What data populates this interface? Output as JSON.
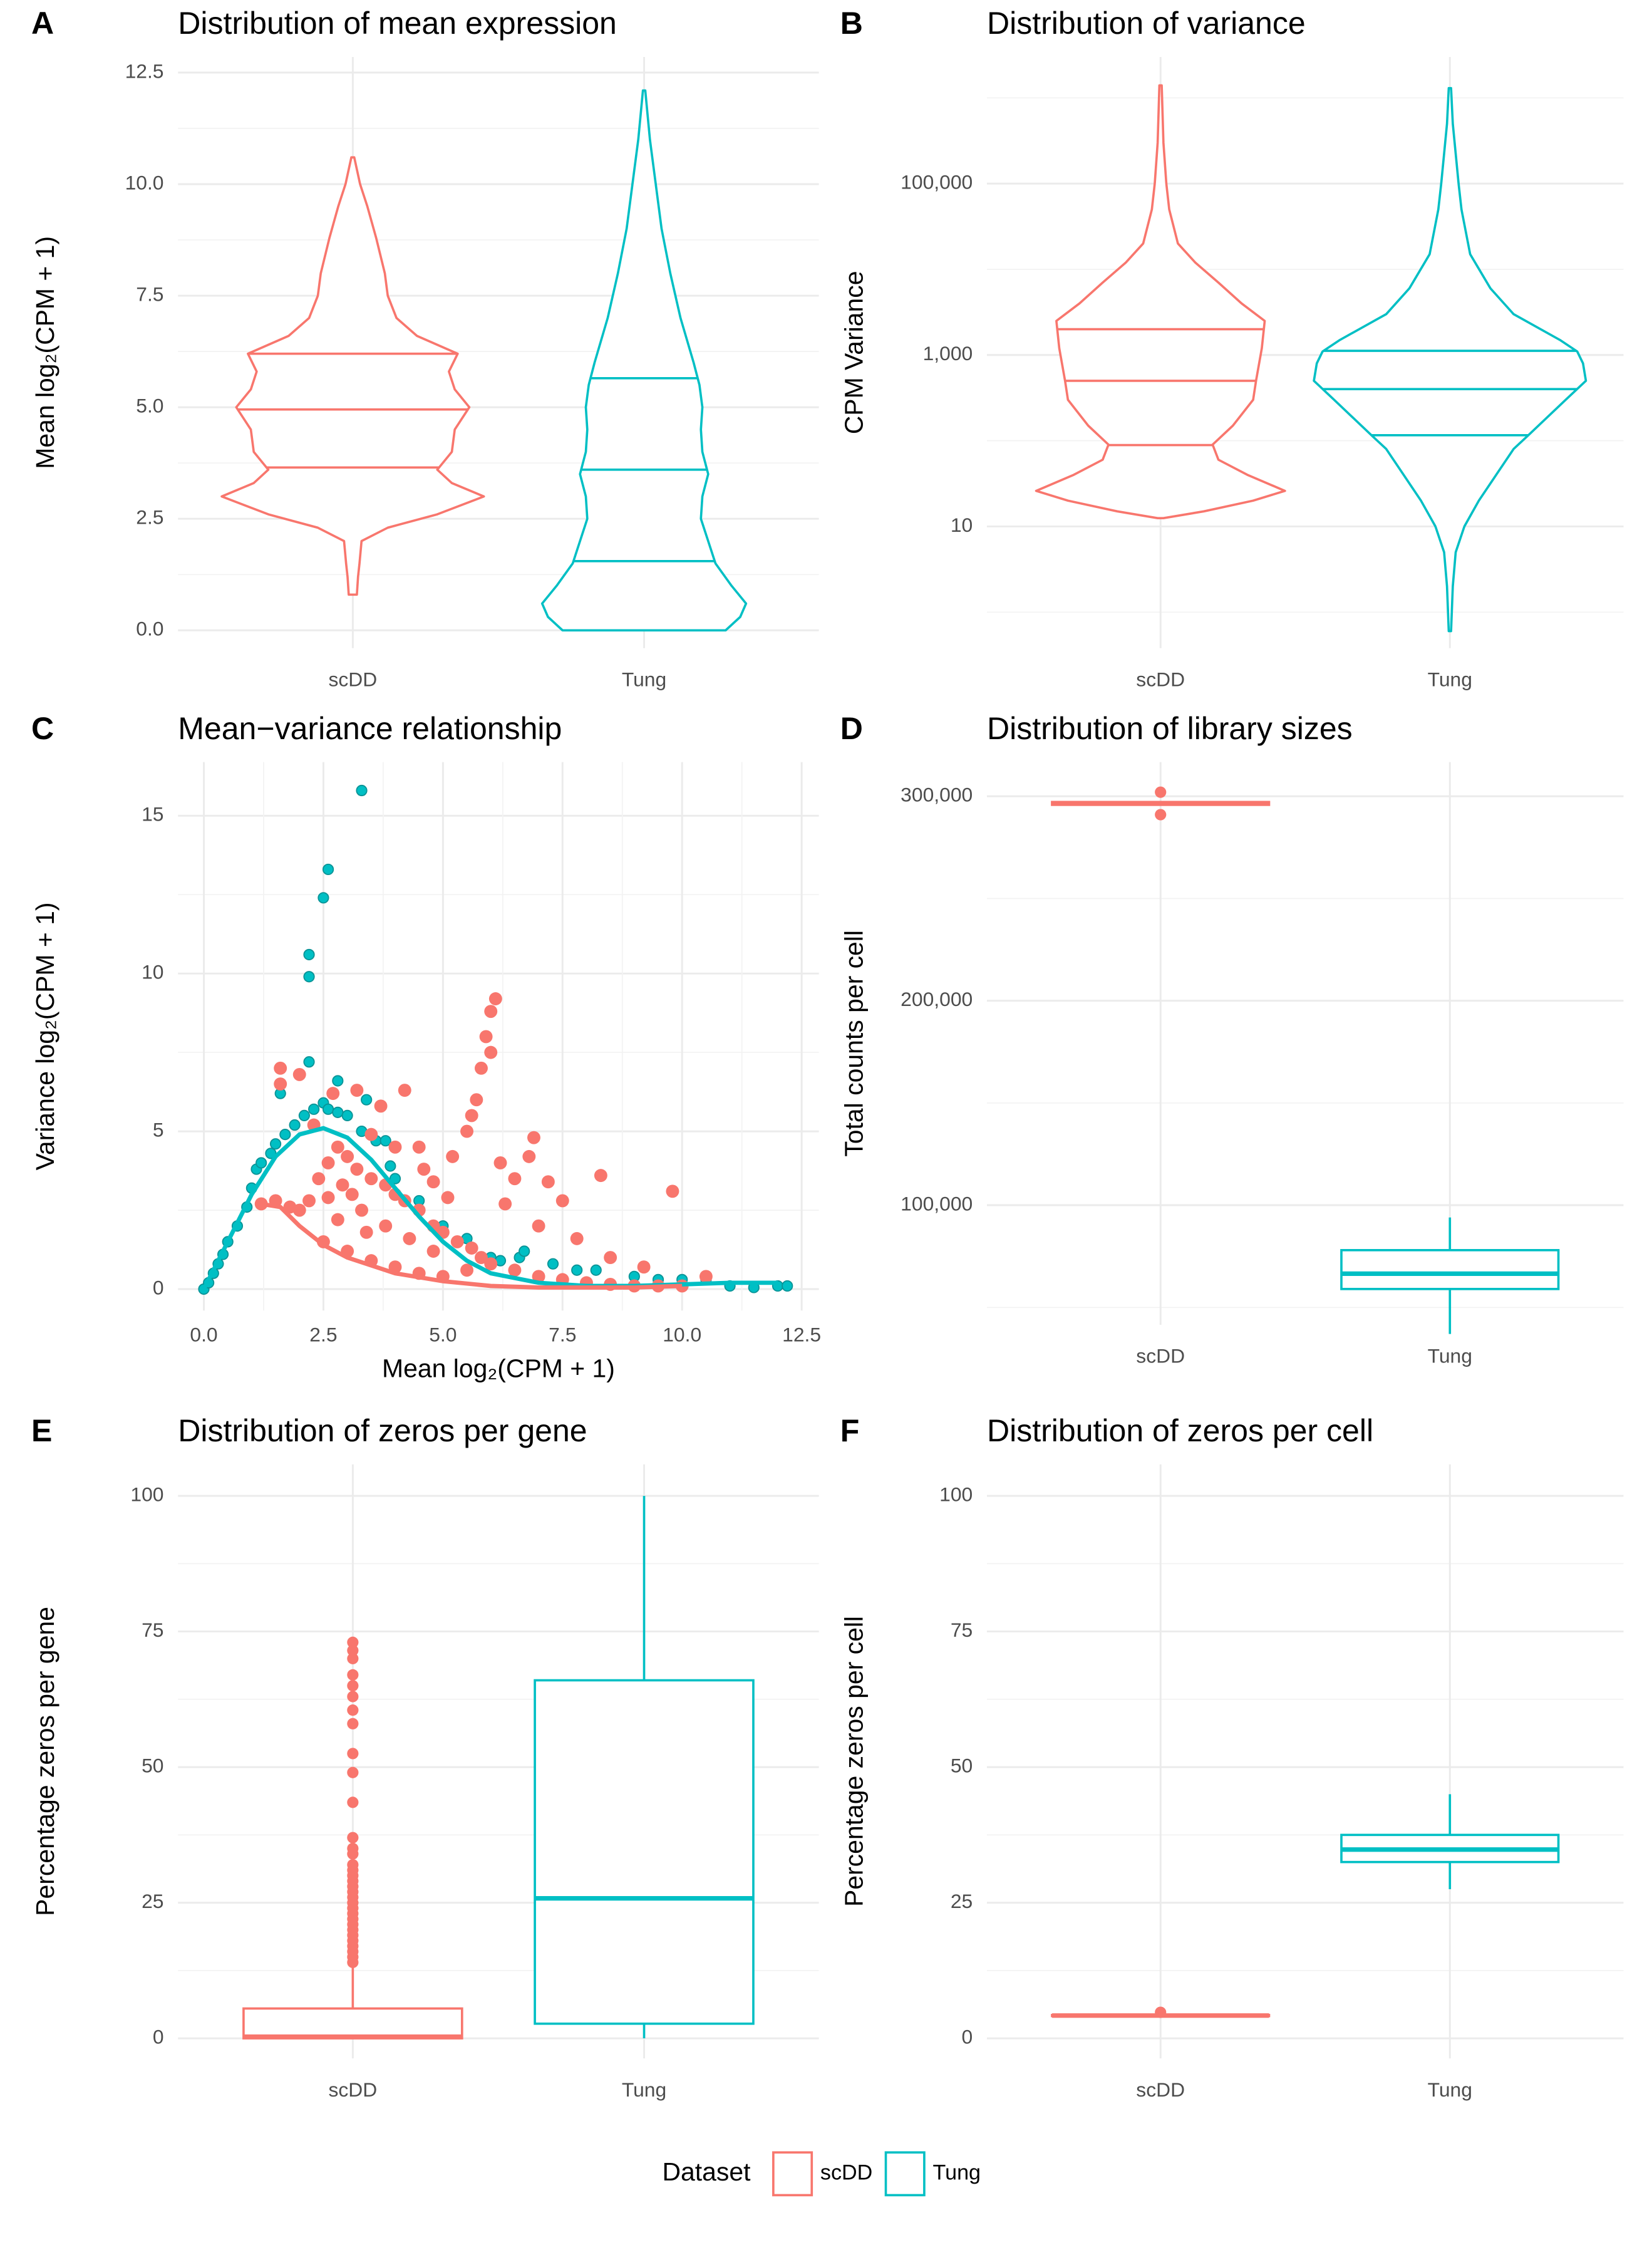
{
  "legend": {
    "title": "Dataset"
  },
  "chart_data": [
    {
      "type": "violin",
      "tag": "A",
      "title": "Distribution of mean expression",
      "ylabel": "Mean log₂(CPM + 1)",
      "categories": [
        "scDD",
        "Tung"
      ],
      "grid": true,
      "ylim": [
        -0.4,
        12.85
      ],
      "yticks": [
        {
          "value": 0,
          "label": "0.0"
        },
        2.5,
        {
          "value": 5,
          "label": "5.0"
        },
        7.5,
        {
          "value": 10,
          "label": "10.0"
        },
        12.5
      ],
      "minor_yticks": [
        1.25,
        3.75,
        6.25,
        8.75,
        11.25
      ],
      "series": [
        {
          "name": "scDD",
          "color": "#F8766D",
          "quantiles": [
            3.65,
            4.95,
            6.2
          ],
          "density": {
            "y": [
              0.8,
              1.2,
              1.5,
              2.0,
              2.3,
              2.6,
              3.0,
              3.3,
              3.6,
              4.0,
              4.5,
              5.0,
              5.4,
              5.8,
              6.2,
              6.6,
              7.0,
              7.5,
              8.0,
              8.8,
              9.5,
              10,
              10.6
            ],
            "width": [
              0.014,
              0.018,
              0.023,
              0.03,
              0.12,
              0.29,
              0.45,
              0.34,
              0.29,
              0.34,
              0.35,
              0.4,
              0.35,
              0.33,
              0.36,
              0.22,
              0.15,
              0.12,
              0.11,
              0.08,
              0.05,
              0.025,
              0.005
            ]
          }
        },
        {
          "name": "Tung",
          "color": "#00BFC4",
          "quantiles": [
            1.55,
            3.6,
            5.65
          ],
          "density": {
            "y": [
              0,
              0.3,
              0.6,
              1.0,
              1.5,
              2.0,
              2.5,
              3,
              3.5,
              4,
              4.5,
              5,
              5.5,
              6,
              7,
              8,
              9,
              10,
              11,
              12.1
            ],
            "width": [
              0.28,
              0.33,
              0.35,
              0.3,
              0.245,
              0.22,
              0.195,
              0.2,
              0.22,
              0.2,
              0.195,
              0.2,
              0.19,
              0.17,
              0.125,
              0.09,
              0.06,
              0.04,
              0.02,
              0.004
            ]
          }
        }
      ]
    },
    {
      "type": "violin",
      "tag": "B",
      "title": "Distribution of variance",
      "ylabel": "CPM Variance",
      "categories": [
        "scDD",
        "Tung"
      ],
      "grid": true,
      "log_y": true,
      "ylim": [
        0.38,
        3000000
      ],
      "yticks": [
        10,
        {
          "value": 1000,
          "label": "1,000"
        },
        {
          "value": 100000,
          "label": "100,000"
        }
      ],
      "minor_yticks": [
        1,
        100,
        10000,
        1000000
      ],
      "series": [
        {
          "name": "scDD",
          "color": "#F8766D",
          "quantiles": [
            89,
            500,
            2000
          ],
          "density": {
            "y": [
              12.5,
              15,
              20,
              26,
              40,
              60,
              90,
              150,
              300,
              500,
              1200,
              2500,
              4000,
              7000,
              12000,
              20000,
              50000,
              100000,
              300000,
              1400000
            ],
            "width": [
              0.01,
              0.15,
              0.32,
              0.43,
              0.3,
              0.2,
              0.18,
              0.25,
              0.32,
              0.33,
              0.35,
              0.36,
              0.28,
              0.2,
              0.12,
              0.06,
              0.03,
              0.02,
              0.01,
              0.004
            ]
          }
        },
        {
          "name": "Tung",
          "color": "#00BFC4",
          "quantiles": [
            116,
            400,
            1120
          ],
          "density": {
            "y": [
              0.6,
              2,
              5,
              10,
              20,
              40,
              80,
              115,
              300,
              500,
              800,
              1100,
              1500,
              3000,
              6000,
              15000,
              50000,
              100000,
              500000,
              1300000
            ],
            "width": [
              0.004,
              0.01,
              0.02,
              0.05,
              0.1,
              0.16,
              0.22,
              0.27,
              0.4,
              0.47,
              0.46,
              0.44,
              0.38,
              0.22,
              0.14,
              0.07,
              0.04,
              0.03,
              0.01,
              0.004
            ]
          }
        }
      ]
    },
    {
      "type": "scatter",
      "tag": "C",
      "title": "Mean−variance relationship",
      "ylabel": "Variance log₂(CPM + 1)",
      "xlabel": "Mean log₂(CPM + 1)",
      "grid": true,
      "xlim": [
        -0.54,
        12.86
      ],
      "xticks": [
        {
          "value": 0,
          "label": "0.0"
        },
        2.5,
        {
          "value": 5,
          "label": "5.0"
        },
        7.5,
        {
          "value": 10,
          "label": "10.0"
        },
        12.5
      ],
      "minor_xticks": [
        1.25,
        3.75,
        6.25,
        8.75,
        11.25
      ],
      "ylim": [
        -0.68,
        16.7
      ],
      "yticks": [
        0,
        5,
        10,
        15
      ],
      "minor_yticks": [
        2.5,
        7.5,
        12.5
      ],
      "series": [
        {
          "name": "scDD",
          "color": "#F8766D",
          "x": [
            1.2,
            1.5,
            1.8,
            2.0,
            2.2,
            2.4,
            2.6,
            2.8,
            3.0,
            3.2,
            3.5,
            3.8,
            4.0,
            4.2,
            4.5,
            4.8,
            5.0,
            5.3,
            5.6,
            5.8,
            6.0,
            6.5,
            7.0,
            7.5,
            8.0,
            8.5,
            9.0,
            9.5,
            10,
            2.5,
            3.0,
            3.5,
            4.0,
            4.5,
            5.0,
            2.8,
            3.3,
            3.8,
            4.3,
            4.8,
            5.5,
            1.6,
            1.6,
            2.0,
            2.7,
            3.2,
            3.7,
            4.2,
            4.5,
            5.5,
            5.7,
            5.8,
            5.9,
            6.0,
            6.1,
            6.0,
            5.6,
            5.2,
            6.2,
            6.5,
            6.8,
            7.2,
            6.9,
            8.3,
            9.8,
            7.5,
            6.3,
            7.0,
            7.8,
            8.5,
            9.2,
            10.5,
            3.5,
            4.0,
            2.3,
            4.8,
            5.1,
            3.1,
            2.6,
            4.6,
            3.4,
            2.9
          ],
          "y": [
            2.7,
            2.8,
            2.6,
            2.5,
            2.8,
            3.5,
            4.0,
            4.5,
            4.2,
            3.8,
            3.5,
            3.3,
            3.0,
            2.8,
            2.5,
            2.0,
            1.8,
            1.5,
            1.3,
            1.0,
            0.8,
            0.6,
            0.4,
            0.3,
            0.2,
            0.15,
            0.1,
            0.1,
            0.1,
            1.5,
            1.2,
            0.9,
            0.7,
            0.5,
            0.4,
            2.2,
            2.5,
            2.0,
            1.6,
            1.2,
            0.6,
            6.5,
            7.0,
            6.8,
            6.2,
            6.3,
            5.8,
            6.3,
            4.5,
            5.0,
            6.0,
            7.0,
            8.0,
            8.8,
            9.2,
            7.5,
            5.5,
            4.2,
            4.0,
            3.5,
            4.2,
            3.4,
            4.8,
            3.6,
            3.1,
            2.8,
            2.7,
            2.0,
            1.6,
            1.0,
            0.7,
            0.4,
            4.9,
            4.5,
            5.2,
            3.4,
            2.9,
            3.0,
            2.9,
            3.8,
            1.8,
            3.3
          ],
          "trend": {
            "x": [
              1.2,
              1.6,
              2.0,
              2.5,
              3,
              4,
              5,
              6,
              7,
              8,
              9,
              10
            ],
            "y": [
              2.7,
              2.6,
              2.0,
              1.4,
              1.0,
              0.5,
              0.25,
              0.1,
              0.05,
              0.05,
              0.05,
              0.1
            ]
          }
        },
        {
          "name": "Tung",
          "color": "#00BFC4",
          "x": [
            0,
            0.1,
            0.2,
            0.3,
            0.4,
            0.5,
            0.7,
            0.9,
            1.0,
            1.1,
            1.2,
            1.4,
            1.5,
            1.7,
            1.9,
            2.1,
            2.3,
            2.5,
            2.6,
            2.8,
            3.0,
            3.3,
            3.6,
            3.8,
            4.0,
            4.5,
            5.0,
            5.5,
            6,
            6.6,
            7.3,
            7.8,
            8.2,
            9,
            9.5,
            10,
            10.5,
            11,
            11.5,
            12,
            12.2,
            1.6,
            2.2,
            2.2,
            2.2,
            2.5,
            2.6,
            3.3,
            2.8,
            3.4,
            6.7,
            6.2,
            3.9
          ],
          "y": [
            0,
            0.2,
            0.5,
            0.8,
            1.1,
            1.5,
            2.0,
            2.6,
            3.2,
            3.8,
            4.0,
            4.3,
            4.6,
            4.9,
            5.2,
            5.5,
            5.7,
            5.9,
            5.7,
            5.6,
            5.5,
            5.0,
            4.7,
            4.7,
            3.5,
            2.8,
            2.0,
            1.6,
            1.0,
            1.0,
            0.8,
            0.6,
            0.6,
            0.4,
            0.3,
            0.3,
            0.3,
            0.1,
            0.05,
            0.1,
            0.1,
            6.2,
            7.2,
            9.9,
            10.6,
            12.4,
            13.3,
            15.8,
            6.6,
            6.0,
            1.2,
            0.9,
            3.9
          ],
          "trend": {
            "x": [
              0,
              0.5,
              1,
              1.5,
              2,
              2.5,
              3,
              3.5,
              4,
              4.5,
              5,
              5.5,
              6,
              7,
              8,
              9,
              10,
              11,
              12
            ],
            "y": [
              0,
              1.5,
              3,
              4.2,
              4.9,
              5.1,
              4.8,
              4.1,
              3.2,
              2.3,
              1.5,
              0.9,
              0.5,
              0.2,
              0.1,
              0.1,
              0.15,
              0.2,
              0.2
            ]
          }
        }
      ]
    },
    {
      "type": "box",
      "tag": "D",
      "title": "Distribution of library sizes",
      "ylabel": "Total counts per cell",
      "categories": [
        "scDD",
        "Tung"
      ],
      "grid": true,
      "ylim": [
        41500,
        316700
      ],
      "yticks": [
        {
          "value": 100000,
          "label": "100,000"
        },
        {
          "value": 200000,
          "label": "200,000"
        },
        {
          "value": 300000,
          "label": "300,000"
        }
      ],
      "minor_yticks": [
        50000,
        150000,
        250000
      ],
      "series": [
        {
          "name": "scDD",
          "color": "#F8766D",
          "stats": [
            295500,
            295800,
            296500,
            297200,
            297500
          ],
          "outliers": [
            302000,
            291000
          ]
        },
        {
          "name": "Tung",
          "color": "#00BFC4",
          "stats": [
            37000,
            59000,
            66500,
            78000,
            94000
          ],
          "outliers": []
        }
      ]
    },
    {
      "type": "box",
      "tag": "E",
      "title": "Distribution of zeros per gene",
      "ylabel": "Percentage zeros per gene",
      "categories": [
        "scDD",
        "Tung"
      ],
      "grid": true,
      "ylim": [
        -3.7,
        105.8
      ],
      "yticks": [
        0,
        25,
        50,
        75,
        100
      ],
      "minor_yticks": [
        12.5,
        37.5,
        62.5,
        87.5
      ],
      "series": [
        {
          "name": "scDD",
          "color": "#F8766D",
          "stats": [
            0,
            0,
            0.3,
            5.5,
            13.5
          ],
          "outliers": [
            14,
            15,
            16,
            17,
            18,
            19,
            20,
            21,
            22,
            23,
            24,
            25,
            26,
            27,
            28,
            29,
            30,
            31,
            32,
            34,
            35,
            37,
            43.5,
            49,
            52.5,
            58,
            60.5,
            63,
            65,
            67,
            70,
            71.5,
            73
          ]
        },
        {
          "name": "Tung",
          "color": "#00BFC4",
          "stats": [
            0,
            2.7,
            25.8,
            66,
            100
          ],
          "outliers": []
        }
      ]
    },
    {
      "type": "box",
      "tag": "F",
      "title": "Distribution of zeros per cell",
      "ylabel": "Percentage zeros per cell",
      "categories": [
        "scDD",
        "Tung"
      ],
      "grid": true,
      "ylim": [
        -3.7,
        105.8
      ],
      "yticks": [
        0,
        25,
        50,
        75,
        100
      ],
      "minor_yticks": [
        12.5,
        37.5,
        62.5,
        87.5
      ],
      "series": [
        {
          "name": "scDD",
          "color": "#F8766D",
          "stats": [
            4.0,
            4.1,
            4.2,
            4.3,
            4.4
          ],
          "outliers": [
            4.8
          ]
        },
        {
          "name": "Tung",
          "color": "#00BFC4",
          "stats": [
            27.5,
            32.5,
            34.8,
            37.5,
            45
          ],
          "outliers": []
        }
      ]
    }
  ]
}
